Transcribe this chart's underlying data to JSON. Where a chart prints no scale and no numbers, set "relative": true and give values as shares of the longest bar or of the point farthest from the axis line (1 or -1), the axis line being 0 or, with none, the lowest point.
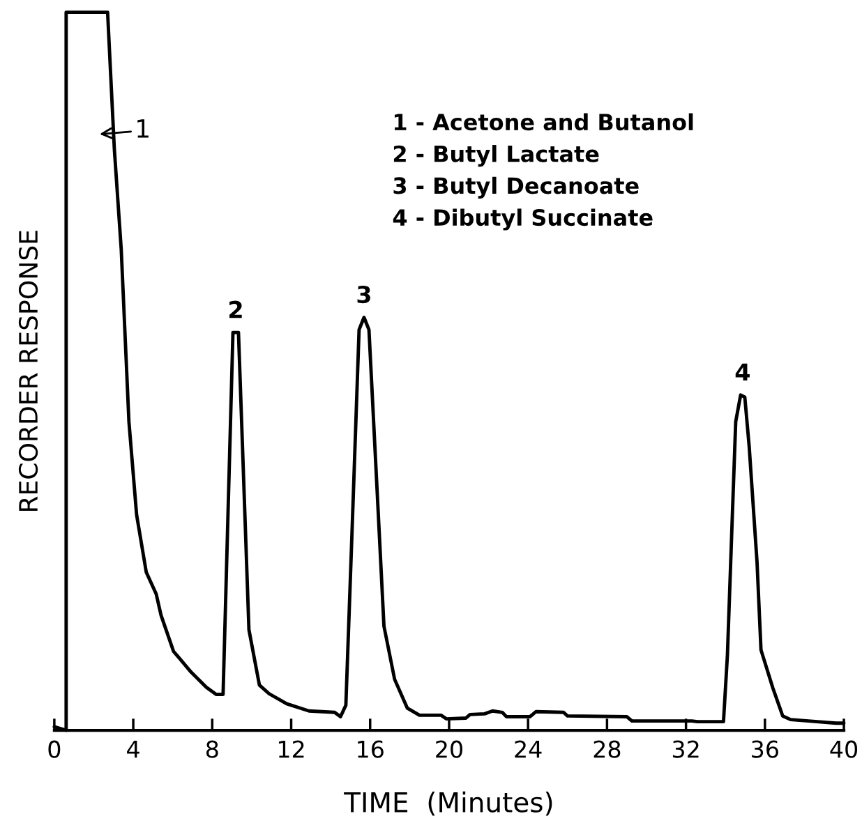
{
  "chart_data": {
    "type": "line",
    "relative": true,
    "xlabel": "TIME  (Minutes)",
    "ylabel": "RECORDER RESPONSE",
    "xlim": [
      0,
      40
    ],
    "xticks": [
      0,
      4,
      8,
      12,
      16,
      20,
      24,
      28,
      32,
      36,
      40
    ],
    "tick_labels": "x",
    "grid": false,
    "legend": false,
    "marker": "none",
    "line_style": "solid",
    "x": [
      0,
      0.6,
      0.6,
      2.7,
      3.04,
      3.39,
      3.78,
      4.17,
      4.66,
      5.16,
      5.41,
      6.04,
      6.93,
      7.7,
      8.2,
      8.55,
      9.05,
      9.19,
      9.33,
      9.86,
      10.39,
      10.88,
      11.77,
      12.9,
      14.2,
      14.5,
      14.77,
      15.1,
      15.44,
      15.69,
      15.94,
      16.36,
      16.7,
      17.24,
      17.88,
      18.5,
      19.6,
      19.86,
      20.85,
      21.06,
      21.8,
      22.2,
      22.7,
      22.9,
      24.1,
      24.4,
      25.8,
      26.0,
      29.0,
      29.26,
      32.3,
      32.58,
      33.9,
      34.1,
      34.35,
      34.52,
      34.77,
      34.98,
      35.2,
      35.6,
      35.8,
      36.4,
      36.9,
      37.3,
      38.2,
      39.6,
      40
    ],
    "series": [
      {
        "color": "#000000",
        "values": [
          0.005,
          0.0,
          1.0,
          1.0,
          0.81,
          0.67,
          0.43,
          0.3,
          0.22,
          0.19,
          0.16,
          0.11,
          0.081,
          0.06,
          0.05,
          0.05,
          0.554,
          0.554,
          0.554,
          0.14,
          0.063,
          0.051,
          0.037,
          0.027,
          0.025,
          0.019,
          0.035,
          0.29,
          0.558,
          0.575,
          0.558,
          0.33,
          0.145,
          0.071,
          0.031,
          0.021,
          0.021,
          0.016,
          0.017,
          0.022,
          0.023,
          0.027,
          0.025,
          0.019,
          0.019,
          0.026,
          0.025,
          0.02,
          0.019,
          0.013,
          0.013,
          0.012,
          0.012,
          0.105,
          0.3,
          0.43,
          0.467,
          0.464,
          0.396,
          0.234,
          0.112,
          0.059,
          0.02,
          0.015,
          0.013,
          0.01,
          0.01
        ]
      }
    ],
    "annotations": [
      "1",
      {
        "text": "2",
        "x": 9.19,
        "y": 0.554
      },
      {
        "text": "3",
        "x": 15.69,
        "y": 0.575
      },
      {
        "text": "4",
        "x": 34.87,
        "y": 0.467
      },
      "1 - Acetone and Butanol",
      "2 - Butyl Lactate",
      "3 - Butyl Decanoate",
      "4 - Dibutyl Succinate"
    ]
  }
}
